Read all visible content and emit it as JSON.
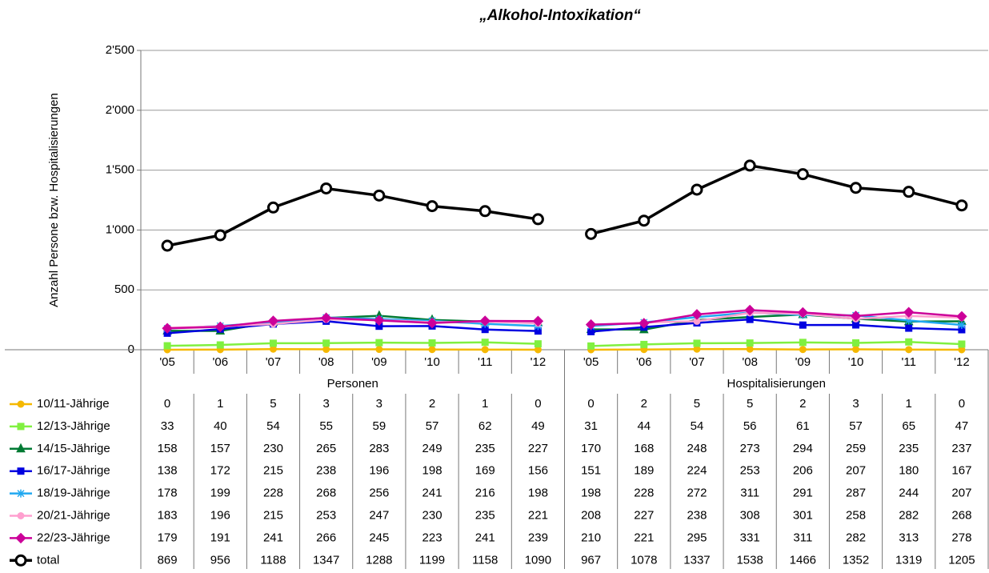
{
  "chart_data": {
    "type": "line",
    "title": "„Alkohol-Intoxikation“",
    "y_label": "Anzahl Persone bzw. Hospitalisierungen",
    "groups": [
      "Personen",
      "Hospitalisierungen"
    ],
    "categories": [
      "'05",
      "'06",
      "'07",
      "'08",
      "'09",
      "'10",
      "'11",
      "'12",
      "'05",
      "'06",
      "'07",
      "'08",
      "'09",
      "'10",
      "'11",
      "'12"
    ],
    "ylim": [
      0,
      2500
    ],
    "yticks": [
      0,
      500,
      {
        "value": 1000,
        "label": "1'000"
      },
      {
        "value": 1500,
        "label": "1'500"
      },
      {
        "value": 2000,
        "label": "2'000"
      },
      {
        "value": 2500,
        "label": "2'500"
      }
    ],
    "grid": true,
    "series": [
      {
        "name": "10/11-Jährige",
        "color": "#f5b800",
        "marker": "circle",
        "values": [
          0,
          1,
          5,
          3,
          3,
          2,
          1,
          0,
          0,
          2,
          5,
          5,
          2,
          3,
          1,
          0
        ]
      },
      {
        "name": "12/13-Jährige",
        "color": "#80f040",
        "marker": "square",
        "values": [
          33,
          40,
          54,
          55,
          59,
          57,
          62,
          49,
          31,
          44,
          54,
          56,
          61,
          57,
          65,
          47
        ]
      },
      {
        "name": "14/15-Jährige",
        "color": "#007a33",
        "marker": "triangle",
        "values": [
          158,
          157,
          230,
          265,
          283,
          249,
          235,
          227,
          170,
          168,
          248,
          273,
          294,
          259,
          235,
          237
        ]
      },
      {
        "name": "16/17-Jährige",
        "color": "#0000e0",
        "marker": "square",
        "values": [
          138,
          172,
          215,
          238,
          196,
          198,
          169,
          156,
          151,
          189,
          224,
          253,
          206,
          207,
          180,
          167
        ]
      },
      {
        "name": "18/19-Jährige",
        "color": "#20a8f0",
        "marker": "star",
        "values": [
          178,
          199,
          228,
          268,
          256,
          241,
          216,
          198,
          198,
          228,
          272,
          311,
          291,
          287,
          244,
          207
        ]
      },
      {
        "name": "20/21-Jährige",
        "color": "#ff9fcf",
        "marker": "circle",
        "values": [
          183,
          196,
          215,
          253,
          247,
          230,
          235,
          221,
          208,
          227,
          238,
          308,
          301,
          258,
          282,
          268
        ]
      },
      {
        "name": "22/23-Jährige",
        "color": "#cc0099",
        "marker": "diamond",
        "values": [
          179,
          191,
          241,
          266,
          245,
          223,
          241,
          239,
          210,
          221,
          295,
          331,
          311,
          282,
          313,
          278
        ]
      },
      {
        "name": "total",
        "color": "#000000",
        "marker": "open-circle",
        "values": [
          869,
          956,
          1188,
          1347,
          1288,
          1199,
          1158,
          1090,
          967,
          1078,
          1337,
          1538,
          1466,
          1352,
          1319,
          1205
        ]
      }
    ]
  }
}
